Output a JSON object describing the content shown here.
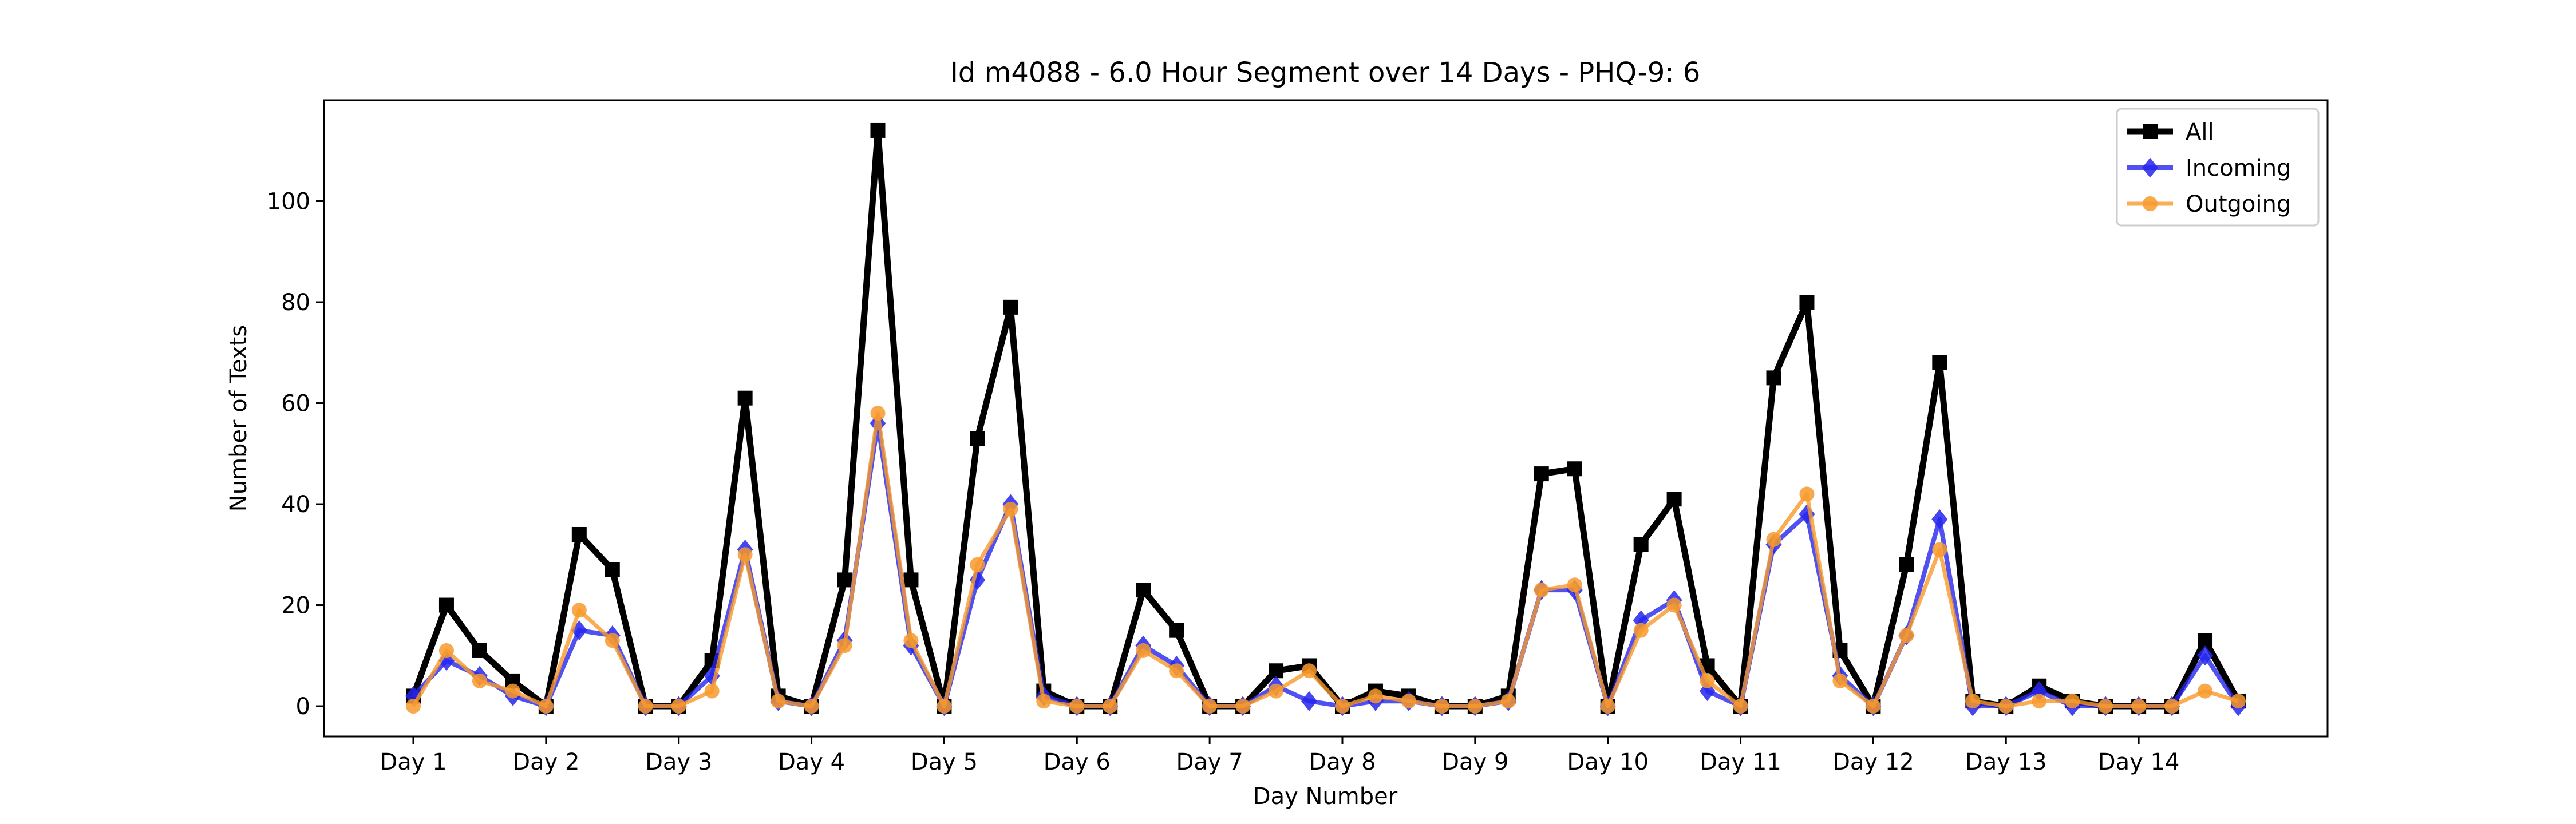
{
  "chart_data": {
    "type": "line",
    "title": "Id m4088 - 6.0 Hour Segment over 14 Days - PHQ-9: 6",
    "xlabel": "Day Number",
    "ylabel": "Number of Texts",
    "x_ticks": [
      "Day 1",
      "Day 2",
      "Day 3",
      "Day 4",
      "Day 5",
      "Day 6",
      "Day 7",
      "Day 8",
      "Day 9",
      "Day 10",
      "Day 11",
      "Day 12",
      "Day 13",
      "Day 14"
    ],
    "y_ticks": [
      0,
      20,
      40,
      60,
      80,
      100
    ],
    "ylim": [
      -6,
      120
    ],
    "points_per_day": 4,
    "legend_position": "top-right",
    "grid": false,
    "series": [
      {
        "name": "All",
        "color": "#000000",
        "marker": "square",
        "values": [
          2,
          20,
          11,
          5,
          0,
          34,
          27,
          0,
          0,
          9,
          61,
          2,
          0,
          25,
          114,
          25,
          0,
          53,
          79,
          3,
          0,
          0,
          23,
          15,
          0,
          0,
          7,
          8,
          0,
          3,
          2,
          0,
          0,
          2,
          46,
          47,
          0,
          32,
          41,
          8,
          0,
          65,
          80,
          11,
          0,
          28,
          68,
          1,
          0,
          4,
          1,
          0,
          0,
          0,
          13,
          1
        ]
      },
      {
        "name": "Incoming",
        "color": "#2626ee",
        "marker": "diamond",
        "values": [
          2,
          9,
          6,
          2,
          0,
          15,
          14,
          0,
          0,
          6,
          31,
          1,
          0,
          13,
          56,
          12,
          0,
          25,
          40,
          2,
          0,
          0,
          12,
          8,
          0,
          0,
          4,
          1,
          0,
          1,
          1,
          0,
          0,
          1,
          23,
          23,
          0,
          17,
          21,
          3,
          0,
          32,
          38,
          6,
          0,
          14,
          37,
          0,
          0,
          3,
          0,
          0,
          0,
          0,
          10,
          0
        ]
      },
      {
        "name": "Outgoing",
        "color": "#f89a2c",
        "marker": "circle",
        "values": [
          0,
          11,
          5,
          3,
          0,
          19,
          13,
          0,
          0,
          3,
          30,
          1,
          0,
          12,
          58,
          13,
          0,
          28,
          39,
          1,
          0,
          0,
          11,
          7,
          0,
          0,
          3,
          7,
          0,
          2,
          1,
          0,
          0,
          1,
          23,
          24,
          0,
          15,
          20,
          5,
          0,
          33,
          42,
          5,
          0,
          14,
          31,
          1,
          0,
          1,
          1,
          0,
          0,
          0,
          3,
          1
        ]
      }
    ]
  }
}
